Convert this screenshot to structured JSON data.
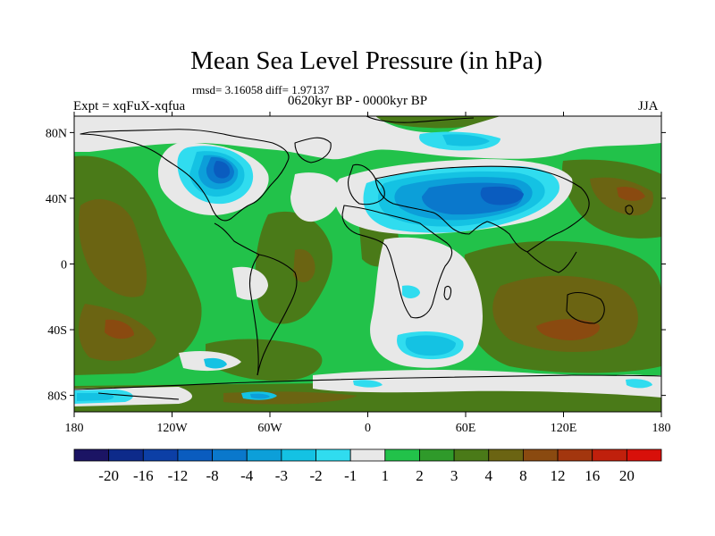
{
  "title": "Mean Sea Level Pressure (in hPa)",
  "stats": "rmsd= 3.16058 diff= 1.97137",
  "expt": "Expt = xqFuX-xqfua",
  "period": "0620kyr BP - 0000kyr BP",
  "season": "JJA",
  "map": {
    "lon_range": [
      -180,
      180
    ],
    "lat_range": [
      -90,
      90
    ],
    "x_ticks": [
      {
        "lon": -180,
        "label": "180"
      },
      {
        "lon": -120,
        "label": "120W"
      },
      {
        "lon": -60,
        "label": "60W"
      },
      {
        "lon": 0,
        "label": "0"
      },
      {
        "lon": 60,
        "label": "60E"
      },
      {
        "lon": 120,
        "label": "120E"
      },
      {
        "lon": 180,
        "label": "180"
      }
    ],
    "y_ticks": [
      {
        "lat": 80,
        "label": "80N"
      },
      {
        "lat": 40,
        "label": "40N"
      },
      {
        "lat": 0,
        "label": "0"
      },
      {
        "lat": -40,
        "label": "40S"
      },
      {
        "lat": -80,
        "label": "80S"
      }
    ]
  },
  "colorbar": {
    "colors": [
      "#1b1464",
      "#0d2a8a",
      "#0c3fa6",
      "#0a5cbf",
      "#0a78cc",
      "#0c9fd9",
      "#14c2e3",
      "#30dcef",
      "#e8e8e8",
      "#22c24a",
      "#2f9a2a",
      "#4a7a18",
      "#6b6412",
      "#8a4a10",
      "#a3360e",
      "#c0200c",
      "#d8100a"
    ],
    "labels": [
      "-20",
      "-16",
      "-12",
      "-8",
      "-4",
      "-3",
      "-2",
      "-1",
      "1",
      "2",
      "3",
      "4",
      "8",
      "12",
      "16",
      "20"
    ]
  }
}
